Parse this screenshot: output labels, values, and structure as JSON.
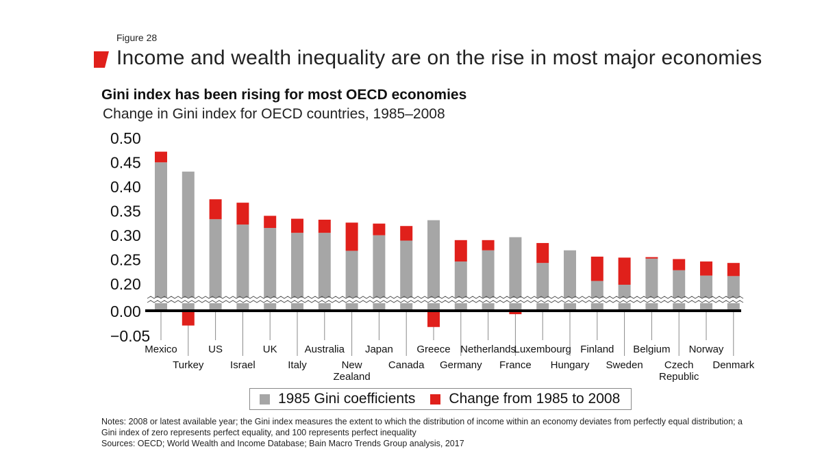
{
  "figure_label": "Figure 28",
  "main_title": "Income and wealth inequality are on the rise in most major economies",
  "colors": {
    "base": "#a6a6a6",
    "change": "#e0201b",
    "axis": "#000000",
    "accent": "#e0201b"
  },
  "chart_data": {
    "type": "bar",
    "stacked": true,
    "title": "Gini index has been rising for most OECD economies",
    "subtitle": "Change in Gini index for OECD countries, 1985–2008",
    "xlabel": "",
    "ylabel": "",
    "y_ticks": [
      "0.50",
      "0.45",
      "0.40",
      "0.35",
      "0.30",
      "0.25",
      "0.20",
      "0.00",
      "−0.05"
    ],
    "y_tick_values": [
      0.5,
      0.45,
      0.4,
      0.35,
      0.3,
      0.25,
      0.2,
      0.0,
      -0.05
    ],
    "axis_break": "between 0.00 and 0.20",
    "grid": false,
    "legend_position": "bottom",
    "categories": [
      "Mexico",
      "Turkey",
      "US",
      "Israel",
      "UK",
      "Italy",
      "Australia",
      "New Zealand",
      "Japan",
      "Canada",
      "Greece",
      "Germany",
      "Netherlands",
      "France",
      "Luxembourg",
      "Hungary",
      "Finland",
      "Sweden",
      "Belgium",
      "Czech Republic",
      "Norway",
      "Denmark"
    ],
    "category_lines": [
      [
        "Mexico"
      ],
      [
        "Turkey"
      ],
      [
        "US"
      ],
      [
        "Israel"
      ],
      [
        "UK"
      ],
      [
        "Italy"
      ],
      [
        "Australia"
      ],
      [
        "New",
        "Zealand"
      ],
      [
        "Japan"
      ],
      [
        "Canada"
      ],
      [
        "Greece"
      ],
      [
        "Germany"
      ],
      [
        "Netherlands"
      ],
      [
        "France"
      ],
      [
        "Luxembourg"
      ],
      [
        "Hungary"
      ],
      [
        "Finland"
      ],
      [
        "Sweden"
      ],
      [
        "Belgium"
      ],
      [
        "Czech",
        "Republic"
      ],
      [
        "Norway"
      ],
      [
        "Denmark"
      ]
    ],
    "series": [
      {
        "name": "1985 Gini coefficients",
        "values": [
          0.449,
          0.43,
          0.332,
          0.321,
          0.314,
          0.304,
          0.304,
          0.267,
          0.299,
          0.288,
          0.33,
          0.245,
          0.268,
          0.295,
          0.242,
          0.268,
          0.205,
          0.19,
          0.251,
          0.227,
          0.216,
          0.215
        ]
      },
      {
        "name": "Change from 1985 to 2008",
        "values": [
          0.022,
          -0.03,
          0.041,
          0.045,
          0.025,
          0.029,
          0.027,
          0.058,
          0.024,
          0.03,
          -0.033,
          0.044,
          0.021,
          -0.007,
          0.041,
          0.0,
          0.05,
          0.063,
          0.003,
          0.023,
          0.029,
          0.027
        ]
      }
    ]
  },
  "notes": {
    "line1": "Notes: 2008 or latest available year; the Gini index measures the extent to which the distribution of income within an economy deviates from perfectly equal distribution; a Gini index of zero represents perfect equality, and 100 represents perfect inequality",
    "line2": "Sources: OECD; World Wealth and Income Database; Bain Macro Trends Group analysis, 2017"
  }
}
